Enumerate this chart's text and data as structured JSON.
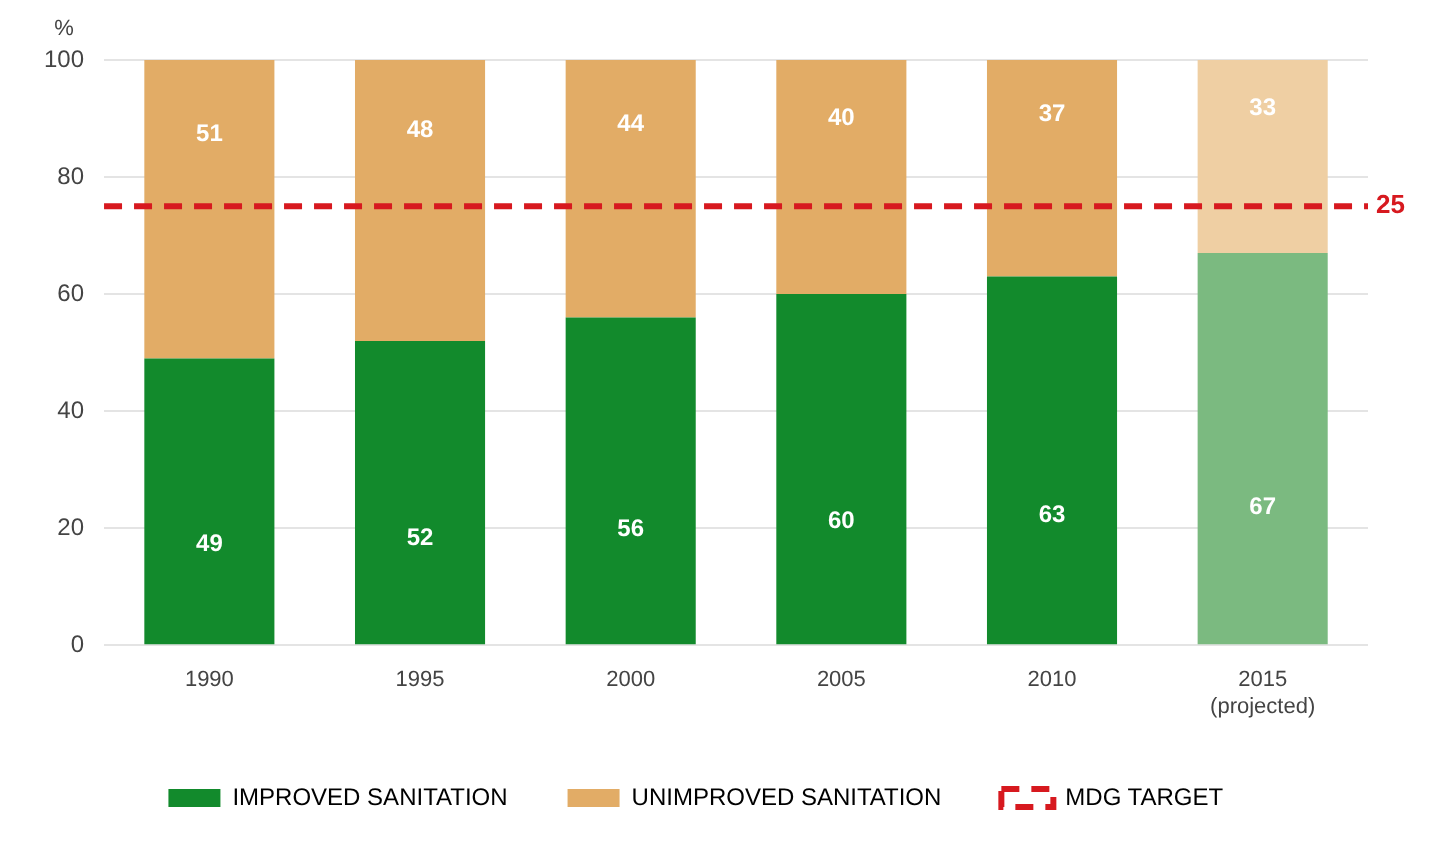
{
  "chart_data": {
    "type": "bar",
    "stacked": true,
    "ylabel": "%",
    "categories": [
      "1990",
      "1995",
      "2000",
      "2005",
      "2010",
      "2015 (projected)"
    ],
    "series": [
      {
        "name": "IMPROVED SANITATION",
        "color": "#128a2c",
        "colors": [
          "#128a2c",
          "#128a2c",
          "#128a2c",
          "#128a2c",
          "#128a2c",
          "#7bba80"
        ],
        "values": [
          49,
          52,
          56,
          60,
          63,
          67
        ]
      },
      {
        "name": "UNIMPROVED SANITATION",
        "color": "#e2ac66",
        "colors": [
          "#e2ac66",
          "#e2ac66",
          "#e2ac66",
          "#e2ac66",
          "#e2ac66",
          "#efcfa3"
        ],
        "values": [
          51,
          48,
          44,
          40,
          37,
          33
        ]
      }
    ],
    "ylim": [
      0,
      100
    ],
    "yticks": [
      0,
      20,
      40,
      60,
      80,
      100
    ],
    "grid": "y",
    "data_labels": true,
    "legend": "bottom",
    "ref_lines": [
      {
        "axis": "y",
        "value": 75,
        "label": "MDG TARGET",
        "color": "#d7191f",
        "line_style": "dashed"
      }
    ],
    "annotations": [
      "25"
    ]
  }
}
